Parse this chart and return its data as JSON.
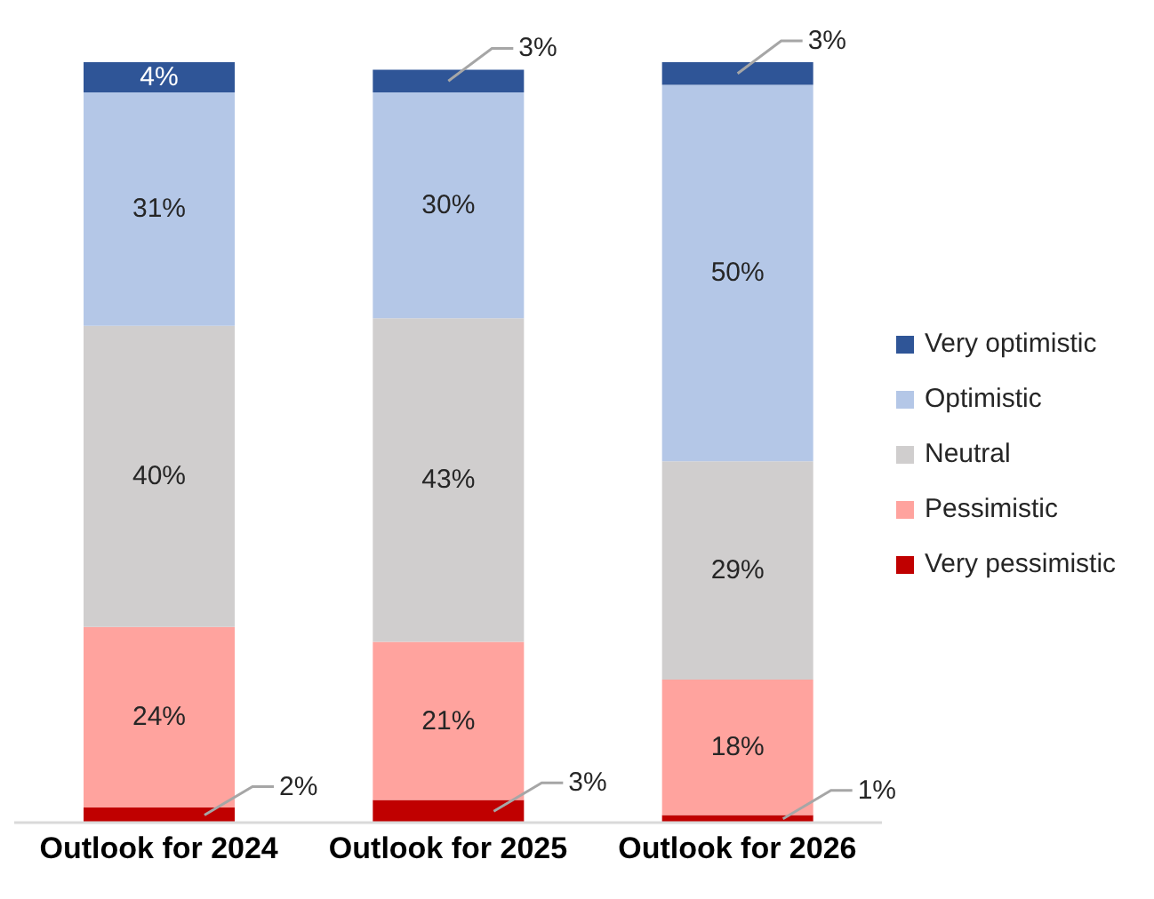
{
  "chart_data": {
    "type": "bar",
    "stacked": true,
    "legend": "right",
    "grid": false,
    "categories": [
      "Outlook for 2024",
      "Outlook for 2025",
      "Outlook for 2026"
    ],
    "series": [
      {
        "name": "Very pessimistic",
        "color": "#c00000",
        "values": [
          2,
          3,
          1
        ],
        "value_labels": [
          "2%",
          "3%",
          "1%"
        ]
      },
      {
        "name": "Pessimistic",
        "color": "#ffa39e",
        "values": [
          24,
          21,
          18
        ],
        "value_labels": [
          "24%",
          "21%",
          "18%"
        ]
      },
      {
        "name": "Neutral",
        "color": "#d0cece",
        "values": [
          40,
          43,
          29
        ],
        "value_labels": [
          "40%",
          "43%",
          "29%"
        ]
      },
      {
        "name": "Optimistic",
        "color": "#b4c7e7",
        "values": [
          31,
          30,
          50
        ],
        "value_labels": [
          "31%",
          "30%",
          "50%"
        ]
      },
      {
        "name": "Very optimistic",
        "color": "#2f5597",
        "values": [
          4,
          3,
          3
        ],
        "value_labels": [
          "4%",
          "3%",
          "3%"
        ]
      }
    ]
  }
}
